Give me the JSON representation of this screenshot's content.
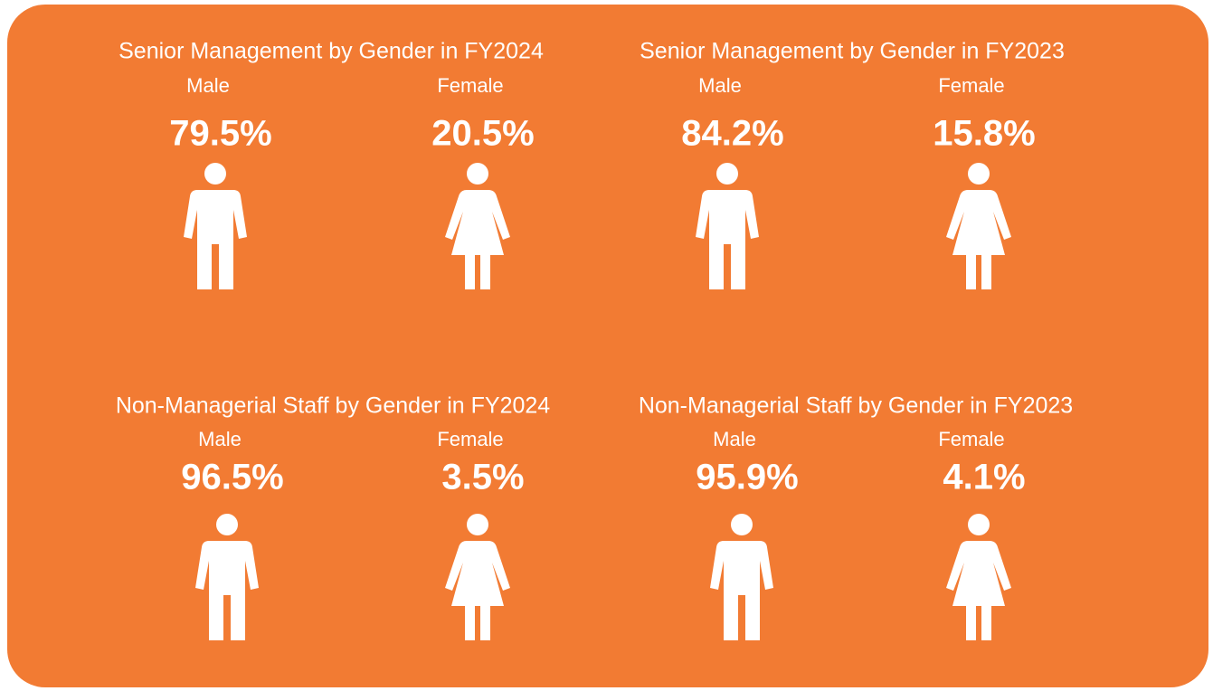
{
  "panels": [
    {
      "title": "Senior Management by Gender in FY2024",
      "items": [
        {
          "label": "Male",
          "value": "79.5%"
        },
        {
          "label": "Female",
          "value": "20.5%"
        }
      ]
    },
    {
      "title": "Senior Management by Gender in FY2023",
      "items": [
        {
          "label": "Male",
          "value": "84.2%"
        },
        {
          "label": "Female",
          "value": "15.8%"
        }
      ]
    },
    {
      "title": "Non-Managerial Staff by Gender in FY2024",
      "items": [
        {
          "label": "Male",
          "value": "96.5%"
        },
        {
          "label": "Female",
          "value": "3.5%"
        }
      ]
    },
    {
      "title": "Non-Managerial Staff by Gender in FY2023",
      "items": [
        {
          "label": "Male",
          "value": "95.9%"
        },
        {
          "label": "Female",
          "value": "4.1%"
        }
      ]
    }
  ]
}
